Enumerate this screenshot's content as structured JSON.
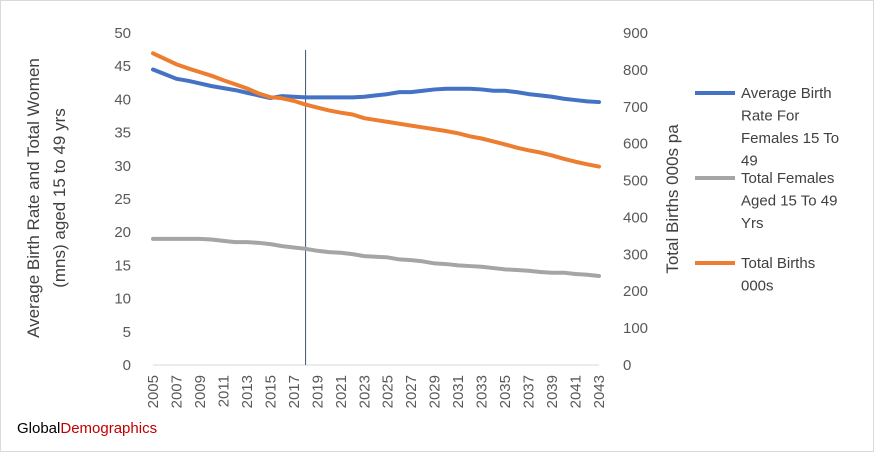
{
  "chart_data": {
    "type": "line",
    "title": "",
    "x": [
      "2005",
      "2006",
      "2007",
      "2008",
      "2009",
      "2010",
      "2011",
      "2012",
      "2013",
      "2014",
      "2015",
      "2016",
      "2017",
      "2018",
      "2019",
      "2020",
      "2021",
      "2022",
      "2023",
      "2024",
      "2025",
      "2026",
      "2027",
      "2028",
      "2029",
      "2030",
      "2031",
      "2032",
      "2033",
      "2034",
      "2035",
      "2036",
      "2037",
      "2038",
      "2039",
      "2040",
      "2041",
      "2042",
      "2043"
    ],
    "x_tick_labels": [
      "2005",
      "2007",
      "2009",
      "2011",
      "2013",
      "2015",
      "2017",
      "2019",
      "2021",
      "2023",
      "2025",
      "2027",
      "2029",
      "2031",
      "2033",
      "2035",
      "2037",
      "2039",
      "2041",
      "2043"
    ],
    "ylabel": "Average Birth Rate and Total Women (mns) aged 15 to 49 yrs",
    "ylabel_lines": [
      "Average Birth Rate and Total Women",
      "(mns) aged 15 to 49 yrs"
    ],
    "y2label": "Total Births 000s pa",
    "ylim": [
      0,
      50
    ],
    "y2lim": [
      0,
      900
    ],
    "y_ticks": [
      "0",
      "5",
      "10",
      "15",
      "20",
      "25",
      "30",
      "35",
      "40",
      "45",
      "50"
    ],
    "y2_ticks": [
      "0",
      "100",
      "200",
      "300",
      "400",
      "500",
      "600",
      "700",
      "800",
      "900"
    ],
    "marker_year": "2018",
    "grid": false,
    "legend_position": "right",
    "series": [
      {
        "name": "Average Birth Rate For Females 15 To 49",
        "legend_lines": [
          "Average Birth",
          "Rate For",
          "Females 15 To",
          "49"
        ],
        "axis": "left",
        "color": "#4472c4",
        "values": [
          44.5,
          43.8,
          43.1,
          42.8,
          42.4,
          42.0,
          41.7,
          41.4,
          41.0,
          40.6,
          40.2,
          40.5,
          40.4,
          40.3,
          40.3,
          40.3,
          40.3,
          40.3,
          40.4,
          40.6,
          40.8,
          41.1,
          41.1,
          41.3,
          41.5,
          41.6,
          41.6,
          41.6,
          41.5,
          41.3,
          41.3,
          41.1,
          40.8,
          40.6,
          40.4,
          40.1,
          39.9,
          39.7,
          39.6
        ]
      },
      {
        "name": "Total Females Aged 15 To 49 Yrs",
        "legend_lines": [
          "Total Females",
          "Aged 15 To 49",
          "Yrs"
        ],
        "axis": "left",
        "color": "#a5a5a5",
        "values": [
          19.0,
          19.0,
          19.0,
          19.0,
          19.0,
          18.9,
          18.7,
          18.5,
          18.5,
          18.4,
          18.2,
          17.9,
          17.7,
          17.5,
          17.2,
          17.0,
          16.9,
          16.7,
          16.4,
          16.3,
          16.2,
          15.9,
          15.8,
          15.6,
          15.3,
          15.2,
          15.0,
          14.9,
          14.8,
          14.6,
          14.4,
          14.3,
          14.2,
          14.0,
          13.9,
          13.9,
          13.7,
          13.6,
          13.4
        ]
      },
      {
        "name": "Total Births 000s",
        "legend_lines": [
          "Total Births",
          "000s"
        ],
        "axis": "right",
        "color": "#ed7d31",
        "values": [
          845,
          830,
          815,
          804,
          794,
          784,
          772,
          761,
          750,
          736,
          726,
          723,
          716,
          706,
          698,
          690,
          684,
          679,
          669,
          664,
          659,
          654,
          649,
          644,
          639,
          634,
          628,
          620,
          614,
          606,
          598,
          589,
          582,
          576,
          568,
          559,
          551,
          544,
          538
        ]
      }
    ]
  },
  "brand": {
    "part1": "Global",
    "part2": "Demographics",
    "color1": "#000000",
    "color2": "#c00000"
  }
}
